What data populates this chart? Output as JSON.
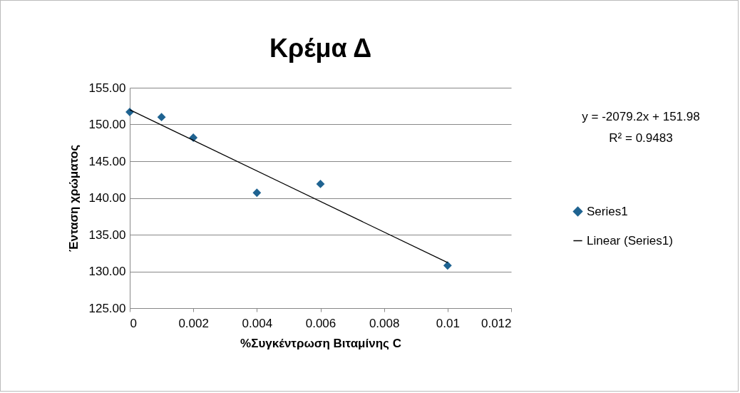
{
  "chart_data": {
    "type": "scatter",
    "title": "Κρέμα Δ",
    "xlabel": "%Συγκέντρωση Βιταμίνης C",
    "ylabel": "Ένταση χρώματος",
    "x": [
      0,
      0.001,
      0.002,
      0.004,
      0.006,
      0.01
    ],
    "series": [
      {
        "name": "Series1",
        "color": "#1f6391",
        "values": [
          151.7,
          151.0,
          148.2,
          140.7,
          141.9,
          130.8
        ],
        "marker": "diamond"
      },
      {
        "name": "Linear (Series1)",
        "type": "line",
        "color": "#000000",
        "x": [
          0,
          0.01
        ],
        "values": [
          152.0,
          131.2
        ],
        "line_style": "solid",
        "marker": "none"
      }
    ],
    "xlim": [
      0,
      0.012
    ],
    "xticks": [
      0,
      0.002,
      0.004,
      0.006,
      0.008,
      0.01,
      0.012
    ],
    "ylim": [
      125,
      155
    ],
    "yticks": [
      {
        "value": 125,
        "label": "125.00"
      },
      {
        "value": 130,
        "label": "130.00"
      },
      {
        "value": 135,
        "label": "135.00"
      },
      {
        "value": 140,
        "label": "140.00"
      },
      {
        "value": 145,
        "label": "145.00"
      },
      {
        "value": 150,
        "label": "150.00"
      },
      {
        "value": 155,
        "label": "155.00"
      }
    ],
    "grid": "y",
    "legend": "right",
    "annotations": [
      "y = -2079.2x + 151.98",
      "R² = 0.9483"
    ]
  }
}
